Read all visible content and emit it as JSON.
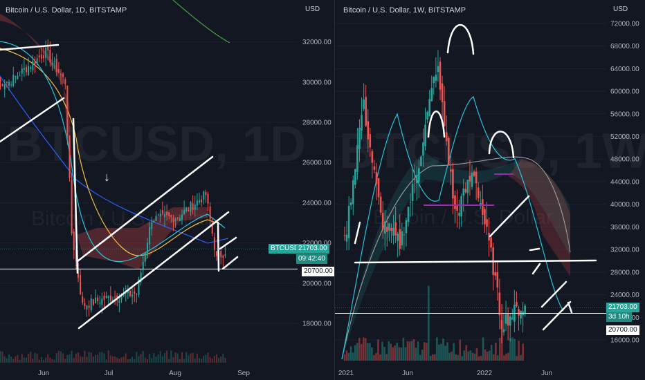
{
  "left_chart": {
    "title": "Bitcoin / U.S. Dollar, 1D, BITSTAMP",
    "currency": "USD",
    "watermark_symbol": "BTCUSD, 1D",
    "watermark_name": "Bitcoin / U.S. Dollar",
    "symbol_tag": "BTCUSD",
    "price_tag": "21703.00",
    "countdown_tag": "09:42:40",
    "level_tag": "20700.00",
    "x_ticks": [
      "Jun",
      "Jul",
      "Aug",
      "Sep"
    ],
    "y_ticks": [
      "18000.00",
      "20000.00",
      "22000.00",
      "24000.00",
      "26000.00",
      "28000.00",
      "30000.00",
      "32000.00"
    ],
    "arrow_glyph": "↓"
  },
  "right_chart": {
    "title": "Bitcoin / U.S. Dollar, 1W, BITSTAMP",
    "currency": "USD",
    "watermark_symbol": "BTCUSD, 1W",
    "watermark_name": "Bitcoin / U.S. Dollar",
    "price_tag": "21703.00",
    "countdown_tag": "3d 10h",
    "level_tag": "20700.00",
    "x_ticks": [
      "2021",
      "Jun",
      "2022",
      "Jun"
    ],
    "y_ticks": [
      "16000.00",
      "20000.00",
      "24000.00",
      "28000.00",
      "32000.00",
      "36000.00",
      "40000.00",
      "44000.00",
      "48000.00",
      "52000.00",
      "56000.00",
      "60000.00",
      "64000.00",
      "68000.00",
      "72000.00"
    ]
  },
  "colors": {
    "background": "#131722",
    "up": "#26a69a",
    "down": "#ef5350",
    "drawing": "#ffffff",
    "ma_yellow": "#f5c242",
    "ma_blue": "#2962ff",
    "ma_green": "#43a047",
    "ma_teal": "#26c6da"
  },
  "chart_data": [
    {
      "type": "candlestick",
      "title": "Bitcoin / U.S. Dollar, 1D, BITSTAMP",
      "ylim": [
        16900,
        33000
      ],
      "current_price": 21703,
      "horizontal_level": 20700,
      "approx_closes": [
        {
          "x": "May 15",
          "y": 30000
        },
        {
          "x": "Jun 1",
          "y": 31500
        },
        {
          "x": "Jun 10",
          "y": 30000
        },
        {
          "x": "Jun 13",
          "y": 22500
        },
        {
          "x": "Jun 18",
          "y": 18900
        },
        {
          "x": "Jul 1",
          "y": 19300
        },
        {
          "x": "Jul 13",
          "y": 19500
        },
        {
          "x": "Jul 20",
          "y": 23200
        },
        {
          "x": "Aug 1",
          "y": 23300
        },
        {
          "x": "Aug 14",
          "y": 24400
        },
        {
          "x": "Aug 19",
          "y": 21200
        },
        {
          "x": "Aug 24",
          "y": 21703
        }
      ]
    },
    {
      "type": "candlestick",
      "title": "Bitcoin / U.S. Dollar, 1W, BITSTAMP",
      "ylim": [
        14000,
        73000
      ],
      "current_price": 21703,
      "horizontal_level": 20700,
      "approx_closes": [
        {
          "x": "2021-01",
          "y": 33000
        },
        {
          "x": "2021-03",
          "y": 58000
        },
        {
          "x": "2021-05",
          "y": 37000
        },
        {
          "x": "2021-07",
          "y": 33000
        },
        {
          "x": "2021-09",
          "y": 47000
        },
        {
          "x": "2021-11",
          "y": 65000
        },
        {
          "x": "2022-01",
          "y": 38000
        },
        {
          "x": "2022-03",
          "y": 46000
        },
        {
          "x": "2022-05",
          "y": 30000
        },
        {
          "x": "2022-06",
          "y": 19000
        },
        {
          "x": "2022-08",
          "y": 21703
        }
      ]
    }
  ]
}
